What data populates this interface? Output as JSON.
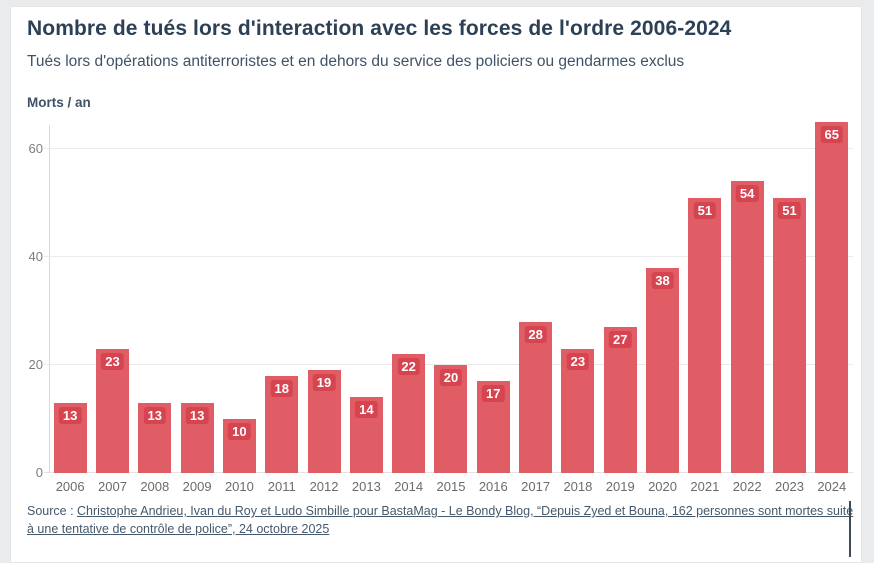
{
  "header": {
    "title": "Nombre de tués lors d'interaction avec les forces de l'ordre 2006-2024",
    "subtitle": "Tués lors d'opérations antiterroristes et en dehors du service des policiers ou gendarmes exclus"
  },
  "axis": {
    "unit_label": "Morts / an"
  },
  "source": {
    "prefix": "Source : ",
    "link_text": "Christophe Andrieu, Ivan du Roy et Ludo Simbille pour BastaMag - Le Bondy Blog, “Depuis Zyed et Bouna, 162 personnes sont mortes suite à une tentative de contrôle de police”, 24 octobre 2025"
  },
  "colors": {
    "bar": "#e05d66",
    "badge": "#d64450",
    "badge_text": "#ffffff",
    "title_text": "#2d4156",
    "subtitle_text": "#3e5367",
    "axis_text": "#7d7d7d",
    "xtick_text": "#6b6b6b",
    "gridline": "#eaeaea",
    "page_bg": "#eaebed",
    "card_bg": "#ffffff"
  },
  "chart_data": {
    "type": "bar",
    "title": "Nombre de tués lors d'interaction avec les forces de l'ordre 2006-2024",
    "subtitle": "Tués lors d'opérations antiterroristes et en dehors du service des policiers ou gendarmes exclus",
    "ylabel": "Morts / an",
    "xlabel": "",
    "categories": [
      "2006",
      "2007",
      "2008",
      "2009",
      "2010",
      "2011",
      "2012",
      "2013",
      "2014",
      "2015",
      "2016",
      "2017",
      "2018",
      "2019",
      "2020",
      "2021",
      "2022",
      "2023",
      "2024"
    ],
    "values": [
      13,
      23,
      13,
      13,
      10,
      18,
      19,
      14,
      22,
      20,
      17,
      28,
      23,
      27,
      38,
      51,
      54,
      51,
      65
    ],
    "ylim": [
      0,
      65
    ],
    "yticks": [
      0,
      20,
      40,
      60
    ],
    "grid": true,
    "legend_position": "none",
    "data_labels": "inside-top-badge"
  }
}
